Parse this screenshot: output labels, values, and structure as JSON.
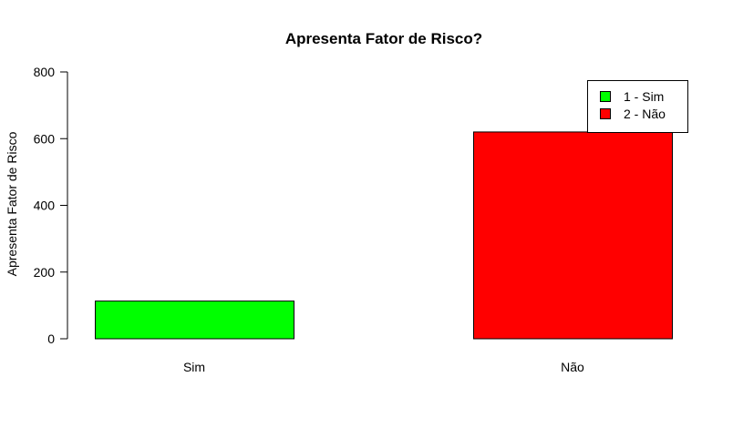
{
  "chart_data": {
    "type": "bar",
    "title": "Apresenta Fator de Risco?",
    "xlabel": "",
    "ylabel": "Apresenta Fator de Risco",
    "categories": [
      "Sim",
      "Não"
    ],
    "values": [
      113,
      620
    ],
    "colors": [
      "#00ff00",
      "#ff0000"
    ],
    "ylim": [
      0,
      800
    ],
    "yticks": [
      0,
      200,
      400,
      600,
      800
    ],
    "grid": false,
    "legend": {
      "position": "top-right",
      "entries": [
        {
          "label": "1 - Sim",
          "color": "#00ff00"
        },
        {
          "label": "2 - Não",
          "color": "#ff0000"
        }
      ]
    }
  }
}
